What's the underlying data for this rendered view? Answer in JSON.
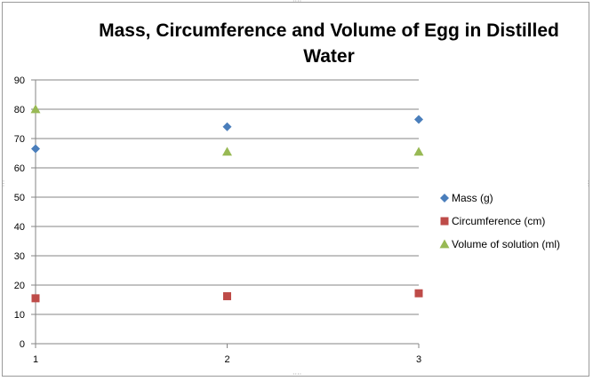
{
  "chart_data": {
    "type": "scatter",
    "title": "Mass, Circumference and Volume of Egg in Distilled Water",
    "xlabel": "",
    "ylabel": "",
    "x": [
      1,
      2,
      3
    ],
    "xticks": [
      "1",
      "2",
      "3"
    ],
    "ylim": [
      0,
      90
    ],
    "yticks": [
      0,
      10,
      20,
      30,
      40,
      50,
      60,
      70,
      80,
      90
    ],
    "grid": true,
    "legend_position": "right",
    "series": [
      {
        "name": "Mass (g)",
        "marker": "diamond",
        "color": "#4a7ebb",
        "values": [
          66.5,
          74,
          76.5
        ]
      },
      {
        "name": "Circumference (cm)",
        "marker": "square",
        "color": "#be4b48",
        "values": [
          15.5,
          16.2,
          17.2
        ]
      },
      {
        "name": "Volume of solution (ml)",
        "marker": "triangle",
        "color": "#98b954",
        "values": [
          80,
          65.5,
          65.5
        ]
      }
    ]
  }
}
